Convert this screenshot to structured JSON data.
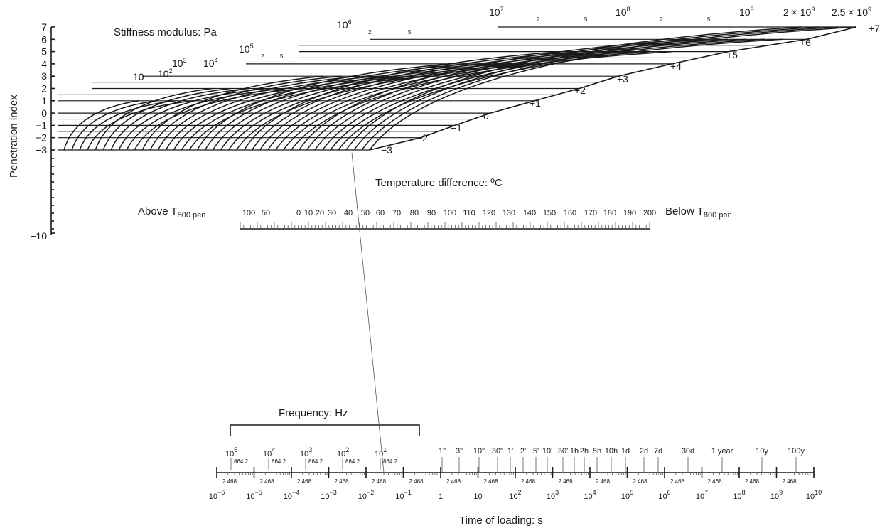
{
  "penetration_axis": {
    "label": "Penetration index",
    "ticks": [
      "7",
      "6",
      "5",
      "4",
      "3",
      "2",
      "1",
      "0",
      "−1",
      "−2",
      "−3"
    ],
    "bottom_tick": "−10"
  },
  "stiffness": {
    "label": "Stiffness modulus: Pa",
    "modulus_labels": [
      {
        "base": "10",
        "exp": ""
      },
      {
        "base": "10",
        "exp": "2"
      },
      {
        "base": "10",
        "exp": "3"
      },
      {
        "base": "10",
        "exp": "4"
      },
      {
        "base": "10",
        "exp": "5"
      },
      {
        "base": "10",
        "exp": "6"
      },
      {
        "base": "10",
        "exp": "7"
      },
      {
        "base": "10",
        "exp": "8"
      },
      {
        "base": "10",
        "exp": "9"
      },
      {
        "base": "2 × 10",
        "exp": "9"
      },
      {
        "base": "2.5 × 10",
        "exp": "9"
      }
    ],
    "pi_edge_labels": [
      "+7",
      "+6",
      "+5",
      "+4",
      "+3",
      "+2",
      "+1",
      "0",
      "−1",
      "−2",
      "−3"
    ],
    "minor_labels": [
      "2",
      "5",
      "2",
      "5",
      "2",
      "5",
      "2",
      "5"
    ]
  },
  "temperature": {
    "label": "Temperature difference: ºC",
    "above_label": "Above T",
    "below_label": "Below T",
    "subscript": "800 pen",
    "ticks": [
      "100",
      "50",
      "0",
      "10",
      "20",
      "30",
      "40",
      "50",
      "60",
      "70",
      "80",
      "90",
      "100",
      "110",
      "120",
      "130",
      "140",
      "150",
      "160",
      "170",
      "180",
      "190",
      "200"
    ]
  },
  "frequency": {
    "label": "Frequency: Hz",
    "decades": [
      {
        "base": "10",
        "exp": "5"
      },
      {
        "base": "10",
        "exp": "4"
      },
      {
        "base": "10",
        "exp": "3"
      },
      {
        "base": "10",
        "exp": "2"
      },
      {
        "base": "10",
        "exp": "1"
      }
    ],
    "minor": "864 2"
  },
  "time": {
    "label": "Time of loading: s",
    "named": [
      "1\"",
      "3\"",
      "10\"",
      "30\"",
      "1'",
      "2'",
      "5'",
      "10'",
      "30'",
      "1h",
      "2h",
      "5h",
      "10h",
      "1d",
      "2d",
      "7d",
      "30d",
      "1 year",
      "10y",
      "100y"
    ],
    "decades": [
      {
        "base": "10",
        "exp": "−6"
      },
      {
        "base": "10",
        "exp": "−5"
      },
      {
        "base": "10",
        "exp": "−4"
      },
      {
        "base": "10",
        "exp": "−3"
      },
      {
        "base": "10",
        "exp": "−2"
      },
      {
        "base": "10",
        "exp": "−1"
      },
      {
        "base": "1",
        "exp": ""
      },
      {
        "base": "10",
        "exp": ""
      },
      {
        "base": "10",
        "exp": "2"
      },
      {
        "base": "10",
        "exp": "3"
      },
      {
        "base": "10",
        "exp": "4"
      },
      {
        "base": "10",
        "exp": "5"
      },
      {
        "base": "10",
        "exp": "6"
      },
      {
        "base": "10",
        "exp": "7"
      },
      {
        "base": "10",
        "exp": "8"
      },
      {
        "base": "10",
        "exp": "9"
      },
      {
        "base": "10",
        "exp": "10"
      }
    ],
    "minor": "2 468"
  },
  "colors": {
    "ink": "#1a1a1a",
    "background": "#ffffff"
  }
}
